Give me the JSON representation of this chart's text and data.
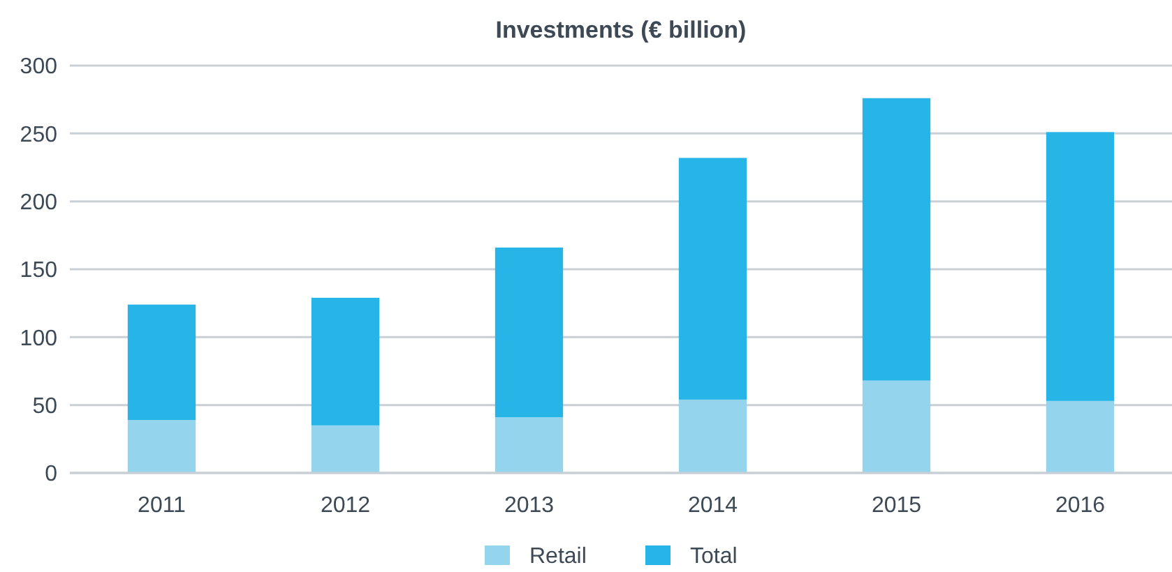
{
  "chart_data": {
    "type": "bar",
    "title": "Investments (€ billion)",
    "categories": [
      "2011",
      "2012",
      "2013",
      "2014",
      "2015",
      "2016"
    ],
    "stacked": true,
    "series": [
      {
        "name": "Retail",
        "color": "#94d4ec",
        "values": [
          39,
          35,
          41,
          54,
          68,
          53
        ]
      },
      {
        "name": "Total",
        "color": "#27b5e8",
        "values": [
          85,
          94,
          125,
          178,
          208,
          198
        ]
      }
    ],
    "ylim": [
      0,
      300
    ],
    "yticks": [
      0,
      50,
      100,
      150,
      200,
      250,
      300
    ],
    "grid": "y",
    "legend": "bottom"
  }
}
